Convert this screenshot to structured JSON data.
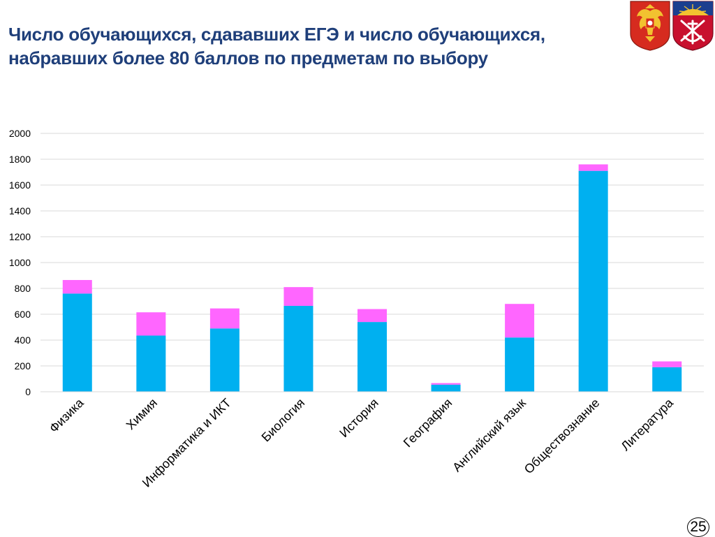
{
  "page": {
    "title_lines": [
      "Число обучающихся, сдававших ЕГЭ и число обучающихся,",
      "набравших более 80 баллов по предметам по выбору"
    ],
    "page_number": "25"
  },
  "colors": {
    "title": "#1f3f7a",
    "series_base": "#00b0f0",
    "series_top": "#ff66ff",
    "grid": "#d9d9d9",
    "emblem_left_bg": "#d62b1f",
    "emblem_right_bg": "#c8102e"
  },
  "emblems": [
    {
      "name": "coat-of-arms-russia",
      "icon": "double-headed-eagle"
    },
    {
      "name": "coat-of-arms-murmansk",
      "icon": "anchor-pickaxe"
    }
  ],
  "chart_data": {
    "type": "bar",
    "stacked": true,
    "categories": [
      "Физика",
      "Химия",
      "Информатика и ИКТ",
      "Биология",
      "История",
      "География",
      "Английский язык",
      "Обществознание",
      "Литература"
    ],
    "series": [
      {
        "values": [
          760,
          435,
          490,
          665,
          540,
          55,
          420,
          1710,
          190
        ]
      },
      {
        "values": [
          105,
          180,
          155,
          145,
          100,
          12,
          260,
          50,
          45
        ]
      }
    ],
    "yticks": [
      0,
      200,
      400,
      600,
      800,
      1000,
      1200,
      1400,
      1600,
      1800,
      2000
    ],
    "ylim": [
      0,
      2000
    ],
    "grid": true,
    "legend": "none",
    "xlabel": "",
    "ylabel": ""
  }
}
